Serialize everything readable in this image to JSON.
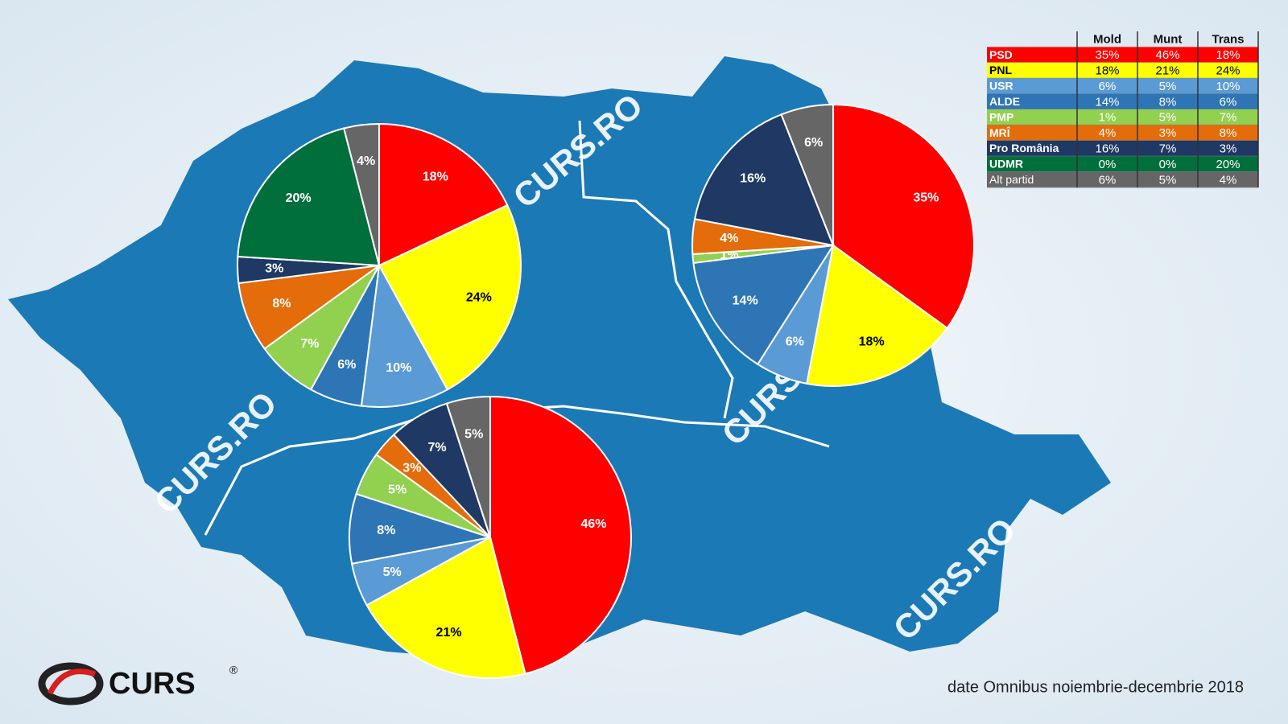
{
  "chart_data": [
    {
      "type": "pie",
      "title": "Mold",
      "values": [
        35,
        18,
        6,
        14,
        1,
        4,
        16,
        0,
        6
      ],
      "value_labels": [
        "35%",
        "18%",
        "6%",
        "14%",
        "1%",
        "4%",
        "16%",
        "0%",
        "6%"
      ]
    },
    {
      "type": "pie",
      "title": "Munt",
      "values": [
        46,
        21,
        5,
        8,
        5,
        3,
        7,
        0,
        5
      ],
      "value_labels": [
        "46%",
        "21%",
        "5%",
        "8%",
        "5%",
        "3%",
        "7%",
        "0%",
        "5%"
      ]
    },
    {
      "type": "pie",
      "title": "Trans",
      "values": [
        18,
        24,
        10,
        6,
        7,
        8,
        3,
        20,
        4
      ],
      "value_labels": [
        "18%",
        "24%",
        "10%",
        "6%",
        "7%",
        "8%",
        "3%",
        "20%",
        "4%"
      ]
    }
  ],
  "legend": {
    "categories": [
      "PSD",
      "PNL",
      "USR",
      "ALDE",
      "PMP",
      "MRÎ",
      "Pro România",
      "UDMR",
      "Alt partid"
    ],
    "colors": [
      "#ff0000",
      "#ffff00",
      "#5b9bd5",
      "#2e75b6",
      "#92d050",
      "#e46c0a",
      "#1f3864",
      "#006f3c",
      "#666666"
    ]
  },
  "watermark": "CURS.RO",
  "logo": "CURS",
  "registered": "®",
  "source": "date Omnibus noiembrie-decembrie 2018"
}
